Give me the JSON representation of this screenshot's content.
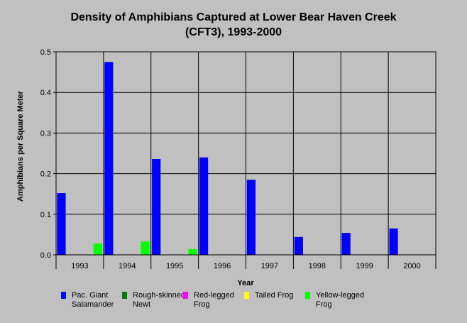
{
  "chart_data": {
    "type": "bar",
    "title_line1": "Density of Amphibians Captured at Lower Bear Haven Creek",
    "title_line2": "(CFT3), 1993-2000",
    "xlabel": "Year",
    "ylabel": "Amphibians per Square Meter",
    "ylim": [
      0,
      0.5
    ],
    "yticks": [
      "0.0",
      "0.1",
      "0.2",
      "0.3",
      "0.4",
      "0.5"
    ],
    "grid": true,
    "legend_position": "bottom",
    "categories": [
      "1993",
      "1994",
      "1995",
      "1996",
      "1997",
      "1998",
      "1999",
      "2000"
    ],
    "series": [
      {
        "name": "Pac. Giant Salamander",
        "color": "#0000ff",
        "values": [
          0.152,
          0.475,
          0.236,
          0.24,
          0.185,
          0.044,
          0.054,
          0.065
        ]
      },
      {
        "name": "Rough-skinned Newt",
        "color": "#008000",
        "values": [
          0,
          0,
          0,
          0,
          0,
          0,
          0,
          0
        ]
      },
      {
        "name": "Red-legged Frog",
        "color": "#ff00ff",
        "values": [
          0,
          0,
          0,
          0,
          0,
          0,
          0,
          0
        ]
      },
      {
        "name": "Tailed Frog",
        "color": "#ffff00",
        "values": [
          0,
          0,
          0,
          0,
          0,
          0,
          0,
          0
        ]
      },
      {
        "name": "Yellow-legged Frog",
        "color": "#00ff00",
        "values": [
          0.028,
          0.033,
          0.014,
          0,
          0,
          0,
          0,
          0
        ]
      }
    ]
  },
  "legend": {
    "items": [
      {
        "line1": "Pac. Giant",
        "line2": "Salamander",
        "color": "#0000ff"
      },
      {
        "line1": "Rough-skinned",
        "line2": "Newt",
        "color": "#008000"
      },
      {
        "line1": "Red-legged",
        "line2": "Frog",
        "color": "#ff00ff"
      },
      {
        "line1": "Tailed Frog",
        "line2": "",
        "color": "#ffff00"
      },
      {
        "line1": "Yellow-legged",
        "line2": "Frog",
        "color": "#00ff00"
      }
    ]
  }
}
